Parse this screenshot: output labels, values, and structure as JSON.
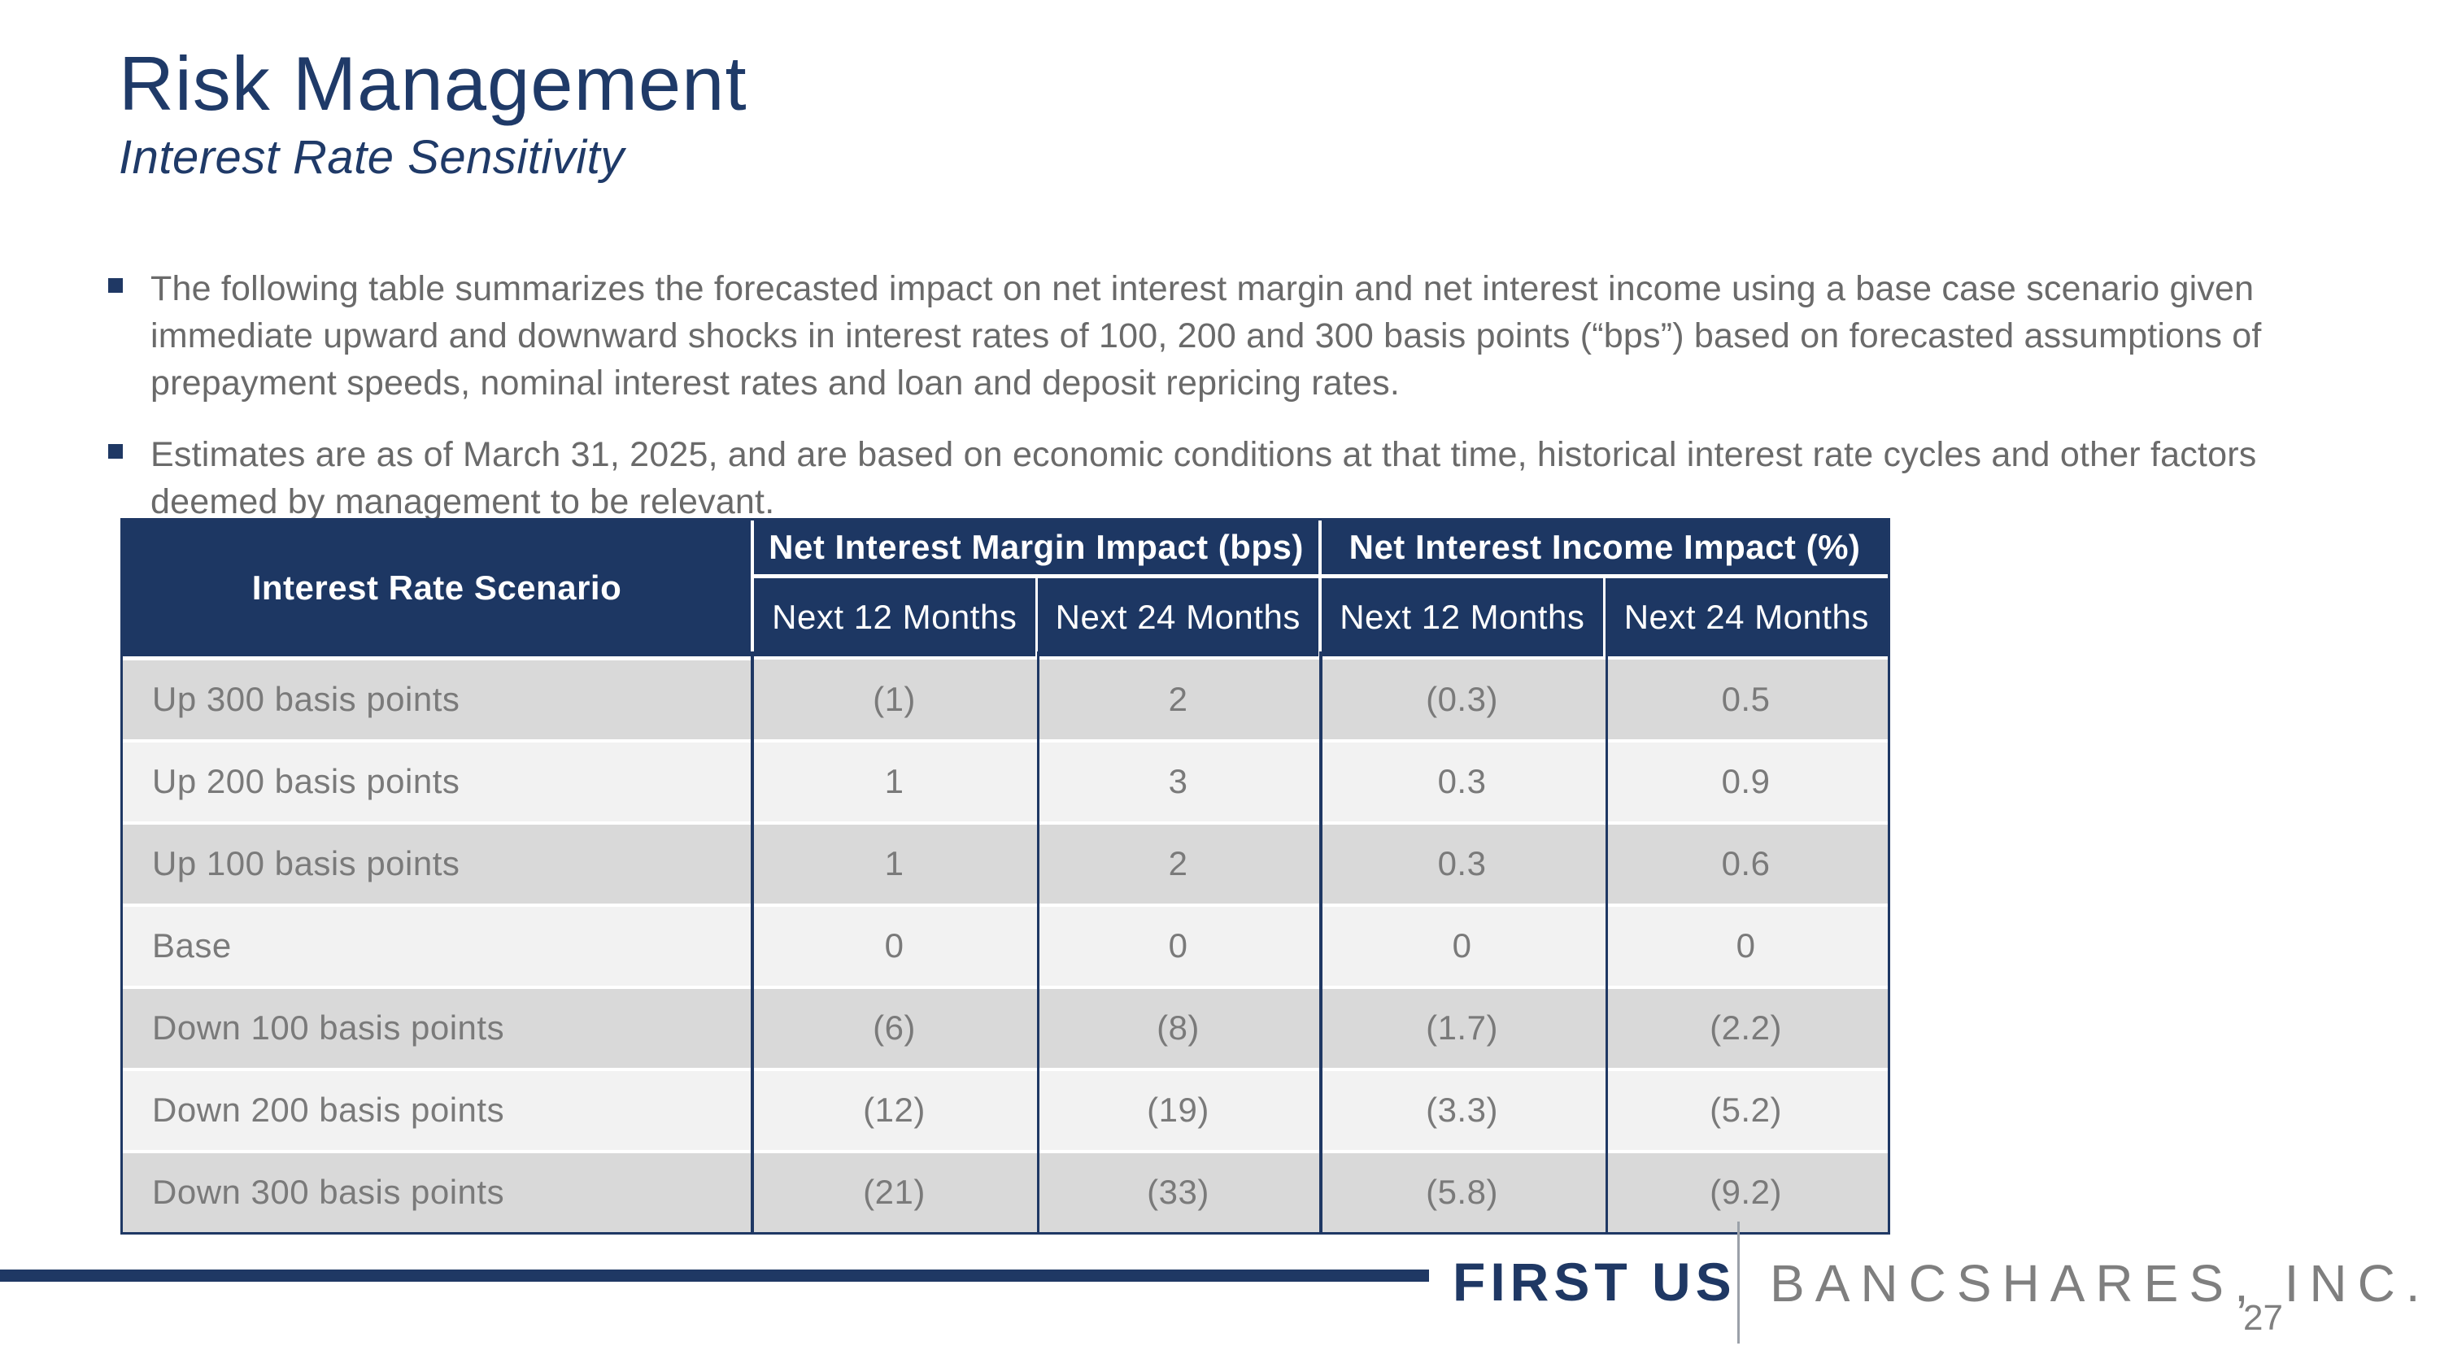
{
  "slide": {
    "title": "Risk Management",
    "subtitle": "Interest Rate Sensitivity",
    "page_number": "27"
  },
  "bullets": [
    {
      "text": "The following table summarizes the forecasted impact on net interest margin and net interest income using a base case scenario given immediate upward and downward shocks in interest rates of 100, 200 and 300 basis points (“bps”) based on forecasted assumptions of prepayment speeds, nominal interest rates and loan and deposit repricing rates."
    },
    {
      "text": "Estimates are as of March 31, 2025, and are based on economic conditions at that time, historical interest rate cycles and other factors deemed by management to be relevant."
    }
  ],
  "table": {
    "scenario_header": "Interest Rate Scenario",
    "groups": [
      {
        "label": "Net Interest Margin Impact (bps)",
        "sub": [
          "Next 12 Months",
          "Next 24 Months"
        ]
      },
      {
        "label": "Net Interest Income Impact (%)",
        "sub": [
          "Next 12 Months",
          "Next 24 Months"
        ]
      }
    ],
    "rows": [
      {
        "scenario": "Up 300 basis points",
        "values": [
          "(1)",
          "2",
          "(0.3)",
          "0.5"
        ]
      },
      {
        "scenario": "Up 200 basis points",
        "values": [
          "1",
          "3",
          "0.3",
          "0.9"
        ]
      },
      {
        "scenario": "Up 100 basis points",
        "values": [
          "1",
          "2",
          "0.3",
          "0.6"
        ]
      },
      {
        "scenario": "Base",
        "values": [
          "0",
          "0",
          "0",
          "0"
        ]
      },
      {
        "scenario": "Down 100 basis points",
        "values": [
          "(6)",
          "(8)",
          "(1.7)",
          "(2.2)"
        ]
      },
      {
        "scenario": "Down 200 basis points",
        "values": [
          "(12)",
          "(19)",
          "(3.3)",
          "(5.2)"
        ]
      },
      {
        "scenario": "Down 300 basis points",
        "values": [
          "(21)",
          "(33)",
          "(5.8)",
          "(9.2)"
        ]
      }
    ]
  },
  "footer": {
    "brand_primary": "FIRST US",
    "brand_secondary": "BANCSHARES, INC."
  },
  "colors": {
    "navy": "#1F3864",
    "header_background": "#1D3763",
    "row_shaded": "#D9D9D9",
    "row_light": "#F2F2F2",
    "bullet_text_gray": "#6A6A6A",
    "table_text_gray": "#7A7A7A",
    "brand_secondary_gray": "#7F7F7F"
  }
}
